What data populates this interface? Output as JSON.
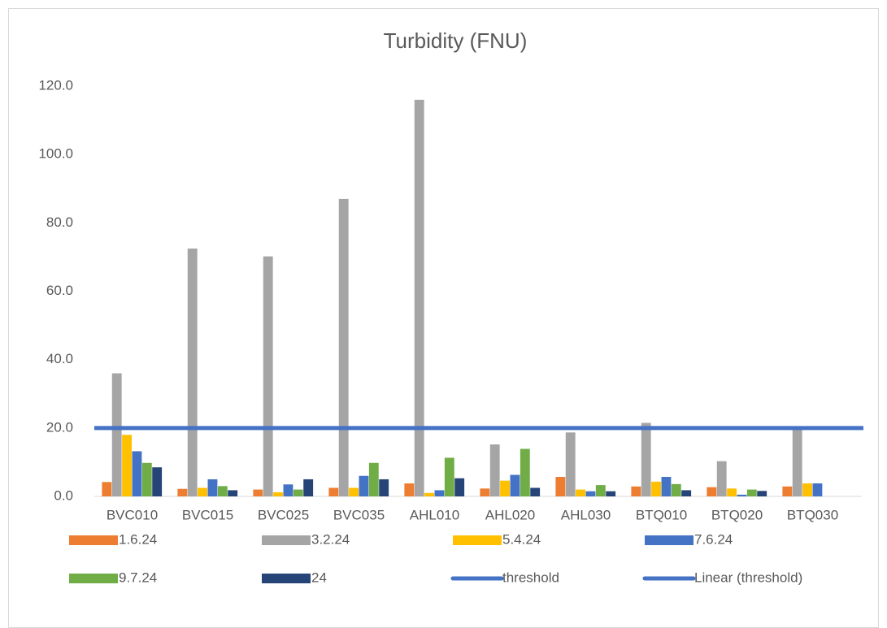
{
  "chart_data": {
    "type": "bar",
    "title": "Turbidity (FNU)",
    "categories": [
      "BVC010",
      "BVC015",
      "BVC025",
      "BVC035",
      "AHL010",
      "AHL020",
      "AHL030",
      "BTQ010",
      "BTQ020",
      "BTQ030"
    ],
    "series": [
      {
        "name": "1.6.24",
        "color": "#ed7d31",
        "values": [
          4.2,
          2.2,
          2.0,
          2.5,
          3.8,
          2.3,
          5.7,
          2.9,
          2.7,
          2.9
        ]
      },
      {
        "name": "3.2.24",
        "color": "#a5a5a5",
        "values": [
          36.0,
          72.5,
          70.2,
          87.0,
          116.0,
          15.2,
          18.7,
          21.5,
          10.3,
          20.0
        ]
      },
      {
        "name": "5.4.24",
        "color": "#ffc000",
        "values": [
          18.0,
          2.5,
          1.2,
          2.5,
          1.0,
          4.6,
          2.0,
          4.3,
          2.3,
          3.8
        ]
      },
      {
        "name": "7.6.24",
        "color": "#4472c4",
        "values": [
          13.2,
          5.0,
          3.5,
          6.0,
          1.8,
          6.3,
          1.5,
          5.7,
          0.5,
          3.8
        ]
      },
      {
        "name": "9.7.24",
        "color": "#70ad47",
        "values": [
          9.8,
          3.0,
          2.0,
          9.8,
          11.3,
          13.9,
          3.3,
          3.6,
          2.0,
          null
        ]
      },
      {
        "name": "24",
        "color": "#264478",
        "values": [
          8.5,
          1.8,
          5.0,
          5.0,
          5.3,
          2.5,
          1.5,
          1.8,
          1.6,
          null
        ]
      },
      {
        "name": "threshold",
        "type": "line",
        "color": "#4472c4",
        "values": [
          20,
          20,
          20,
          20,
          20,
          20,
          20,
          20,
          20,
          20
        ]
      },
      {
        "name": "Linear (threshold)",
        "type": "trendline",
        "color": "#4472c4",
        "values": [
          20,
          20,
          20,
          20,
          20,
          20,
          20,
          20,
          20,
          20
        ]
      }
    ],
    "ylim": [
      0,
      120
    ],
    "yticks": [
      {
        "value": 0,
        "label": "0.0"
      },
      {
        "value": 20,
        "label": "20.0"
      },
      {
        "value": 40,
        "label": "40.0"
      },
      {
        "value": 60,
        "label": "60.0"
      },
      {
        "value": 80,
        "label": "80.0"
      },
      {
        "value": 100,
        "label": "100.0"
      },
      {
        "value": 120,
        "label": "120.0"
      }
    ],
    "grid": false,
    "legend": "bottom"
  }
}
